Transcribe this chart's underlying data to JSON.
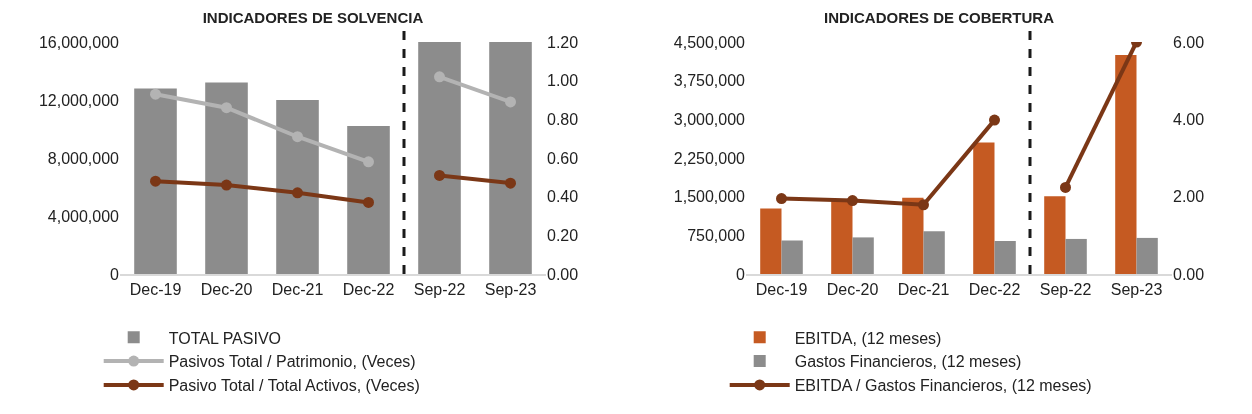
{
  "chart_data": [
    {
      "type": "bar",
      "title": "INDICADORES DE SOLVENCIA",
      "categories": [
        "Dec-19",
        "Dec-20",
        "Dec-21",
        "Dec-22",
        "Sep-22",
        "Sep-23"
      ],
      "series": [
        {
          "name": "TOTAL PASIVO",
          "color": "#8c8c8c",
          "values": [
            12800000,
            13200000,
            12000000,
            10200000,
            16000000,
            16000000
          ]
        },
        {
          "name": "Pasivos Total / Patrimonio, (Veces)",
          "type": "line",
          "axis": "y2",
          "color": "#b3b3b3",
          "values": [
            0.93,
            0.86,
            0.71,
            0.58,
            1.02,
            0.89
          ]
        },
        {
          "name": "Pasivo Total / Total Activos, (Veces)",
          "type": "line",
          "axis": "y2",
          "color": "#7b3716",
          "values": [
            0.48,
            0.46,
            0.42,
            0.37,
            0.51,
            0.47
          ]
        }
      ],
      "ylim": [
        0,
        16000000
      ],
      "yticks": [
        {
          "value": 0,
          "label": "0"
        },
        {
          "value": 4000000,
          "label": "4,000,000"
        },
        {
          "value": 8000000,
          "label": "8,000,000"
        },
        {
          "value": 12000000,
          "label": "12,000,000"
        },
        {
          "value": 16000000,
          "label": "16,000,000"
        }
      ],
      "y2lim": [
        0,
        1.2
      ],
      "y2ticks": [
        {
          "value": 0,
          "label": "0.00"
        },
        {
          "value": 0.2,
          "label": "0.20"
        },
        {
          "value": 0.4,
          "label": "0.40"
        },
        {
          "value": 0.6,
          "label": "0.60"
        },
        {
          "value": 0.8,
          "label": "0.80"
        },
        {
          "value": 1,
          "label": "1.00"
        },
        {
          "value": 1.2,
          "label": "1.20"
        }
      ],
      "marker": "circle",
      "grid": false,
      "legend": "bottom"
    },
    {
      "type": "bar",
      "title": "INDICADORES DE COBERTURA",
      "categories": [
        "Dec-19",
        "Dec-20",
        "Dec-21",
        "Dec-22",
        "Sep-22",
        "Sep-23"
      ],
      "series": [
        {
          "name": "EBITDA, (12 meses)",
          "color": "#c55a22",
          "values": [
            1270000,
            1420000,
            1480000,
            2550000,
            1510000,
            4250000
          ]
        },
        {
          "name": "Gastos Financieros, (12 meses)",
          "color": "#8c8c8c",
          "values": [
            650000,
            710000,
            830000,
            640000,
            680000,
            700000
          ]
        },
        {
          "name": "EBITDA / Gastos Financieros, (12 meses)",
          "type": "line",
          "axis": "y2",
          "color": "#7b3716",
          "values": [
            1.95,
            1.9,
            1.79,
            3.98,
            2.24,
            6.0
          ]
        }
      ],
      "ylim": [
        0,
        4500000
      ],
      "yticks": [
        {
          "value": 0,
          "label": "0"
        },
        {
          "value": 750000,
          "label": "750,000"
        },
        {
          "value": 1500000,
          "label": "1,500,000"
        },
        {
          "value": 2250000,
          "label": "2,250,000"
        },
        {
          "value": 3000000,
          "label": "3,000,000"
        },
        {
          "value": 3750000,
          "label": "3,750,000"
        },
        {
          "value": 4500000,
          "label": "4,500,000"
        }
      ],
      "y2lim": [
        0,
        6
      ],
      "y2ticks": [
        {
          "value": 0,
          "label": "0.00"
        },
        {
          "value": 2,
          "label": "2.00"
        },
        {
          "value": 4,
          "label": "4.00"
        },
        {
          "value": 6,
          "label": "6.00"
        }
      ],
      "marker": "circle",
      "grid": false,
      "legend": "bottom"
    }
  ]
}
